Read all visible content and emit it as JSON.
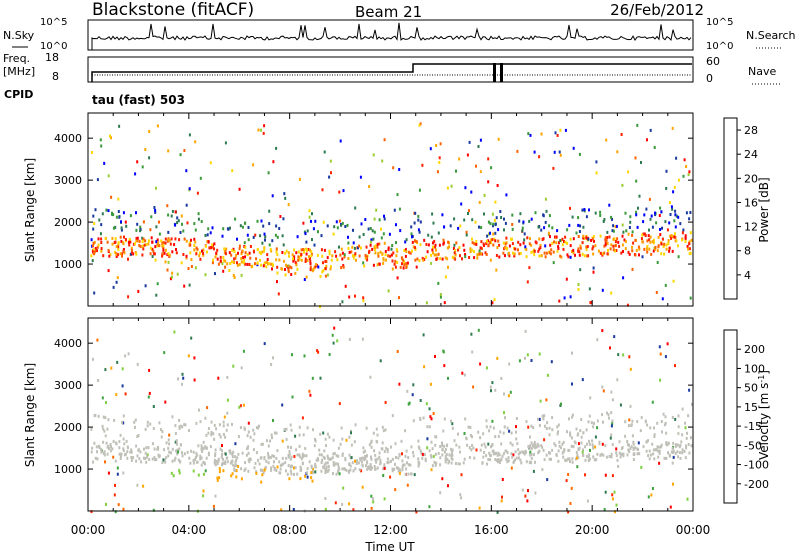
{
  "header": {
    "station": "Blackstone (fitACF)",
    "beam": "Beam 21",
    "date": "26/Feb/2012"
  },
  "noise_panel": {
    "left_label": "N.Sky",
    "left_ticks": [
      "10^5",
      "10^0"
    ],
    "right_ticks": [
      "10^5",
      "10^0"
    ],
    "right_label": "N.Search"
  },
  "freq_panel": {
    "left_label_1": "Freq.",
    "left_label_2": "[MHz]",
    "left_ticks": [
      "18",
      "8"
    ],
    "right_ticks": [
      "60",
      "0"
    ],
    "right_label": "Nave",
    "cpid_label": "CPID",
    "mode_label": "tau (fast) 503"
  },
  "colors": {
    "power": [
      "#0000ff",
      "#1a3aa0",
      "#2e7a50",
      "#3a9a3a",
      "#9acd32",
      "#ffd700",
      "#ffa500",
      "#ff6000",
      "#ff2000",
      "#ff0000"
    ],
    "velocity": [
      "#1a3aa0",
      "#2e7a50",
      "#3ea33e",
      "#7fcf3f",
      "#c0c0b8",
      "#c0c0b8",
      "#ffa500",
      "#ff6a00",
      "#ff2a00",
      "#ff0000"
    ]
  },
  "chart_data": [
    {
      "type": "heatmap",
      "panel": "power",
      "ylabel": "Slant Range [km]",
      "yticks": [
        "1000",
        "2000",
        "3000",
        "4000"
      ],
      "ylim": [
        0,
        4600
      ],
      "x": {
        "ticks": [
          "00:00",
          "04:00",
          "08:00",
          "12:00",
          "16:00",
          "20:00",
          "00:00"
        ]
      },
      "colorbar": {
        "label": "Power [dB]",
        "ticks": [
          "4",
          "8",
          "12",
          "16",
          "20",
          "24",
          "28"
        ]
      },
      "scatter_band": {
        "range_km": [
          900,
          2100
        ],
        "strong_core_km": [
          1150,
          1550
        ]
      }
    },
    {
      "type": "heatmap",
      "panel": "velocity",
      "ylabel": "Slant Range [km]",
      "yticks": [
        "1000",
        "2000",
        "3000",
        "4000"
      ],
      "ylim": [
        0,
        4600
      ],
      "x": {
        "ticks": [
          "00:00",
          "04:00",
          "08:00",
          "12:00",
          "16:00",
          "20:00",
          "00:00"
        ]
      },
      "xlabel": "Time UT",
      "colorbar": {
        "label": "Velocity [m s^-1]",
        "ticks": [
          "200",
          "100",
          "50",
          "15",
          "-15",
          "-50",
          "-100",
          "-200"
        ]
      }
    }
  ]
}
